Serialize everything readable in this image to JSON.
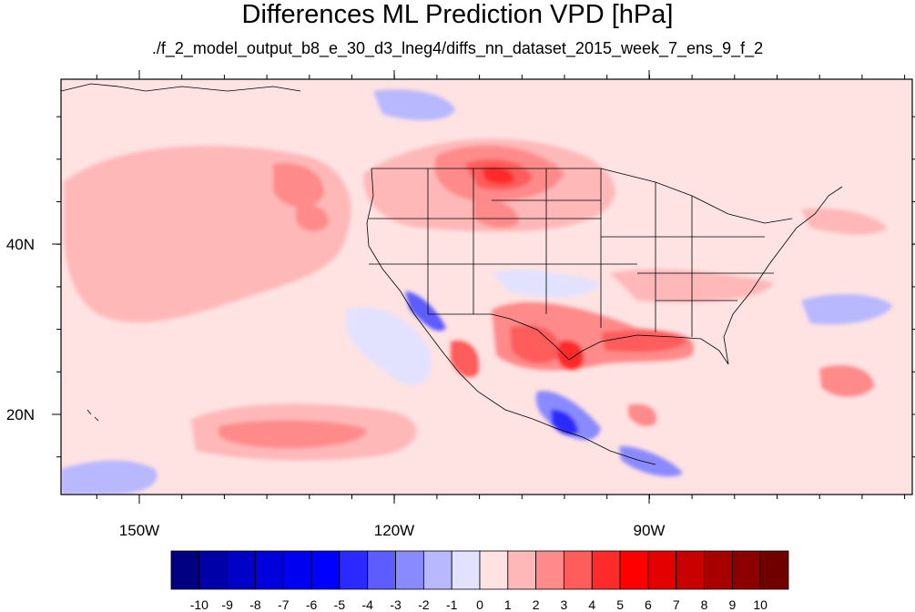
{
  "title": "Differences ML Prediction VPD [hPa]",
  "subtitle": "./f_2_model_output_b8_e_30_d3_lneg4/diffs_nn_dataset_2015_week_7_ens_9_f_2",
  "axes": {
    "lon_labels": [
      "150W",
      "120W",
      "90W"
    ],
    "lat_labels": [
      "40N",
      "20N"
    ]
  },
  "colorbar": {
    "labels": [
      "-10",
      "-9",
      "-8",
      "-7",
      "-6",
      "-5",
      "-4",
      "-3",
      "-2",
      "-1",
      "0",
      "1",
      "2",
      "3",
      "4",
      "5",
      "6",
      "7",
      "8",
      "9",
      "10"
    ],
    "colors": [
      "#000080",
      "#0000a8",
      "#0000c8",
      "#0000dc",
      "#0000f0",
      "#0000ff",
      "#2a2aff",
      "#5c5cff",
      "#8a8aff",
      "#b8b8ff",
      "#e2e2ff",
      "#ffe2e2",
      "#ffb8b8",
      "#ff8a8a",
      "#ff5c5c",
      "#ff2a2a",
      "#ff0000",
      "#e40000",
      "#c80000",
      "#a80000",
      "#8c0000",
      "#700000"
    ]
  }
}
